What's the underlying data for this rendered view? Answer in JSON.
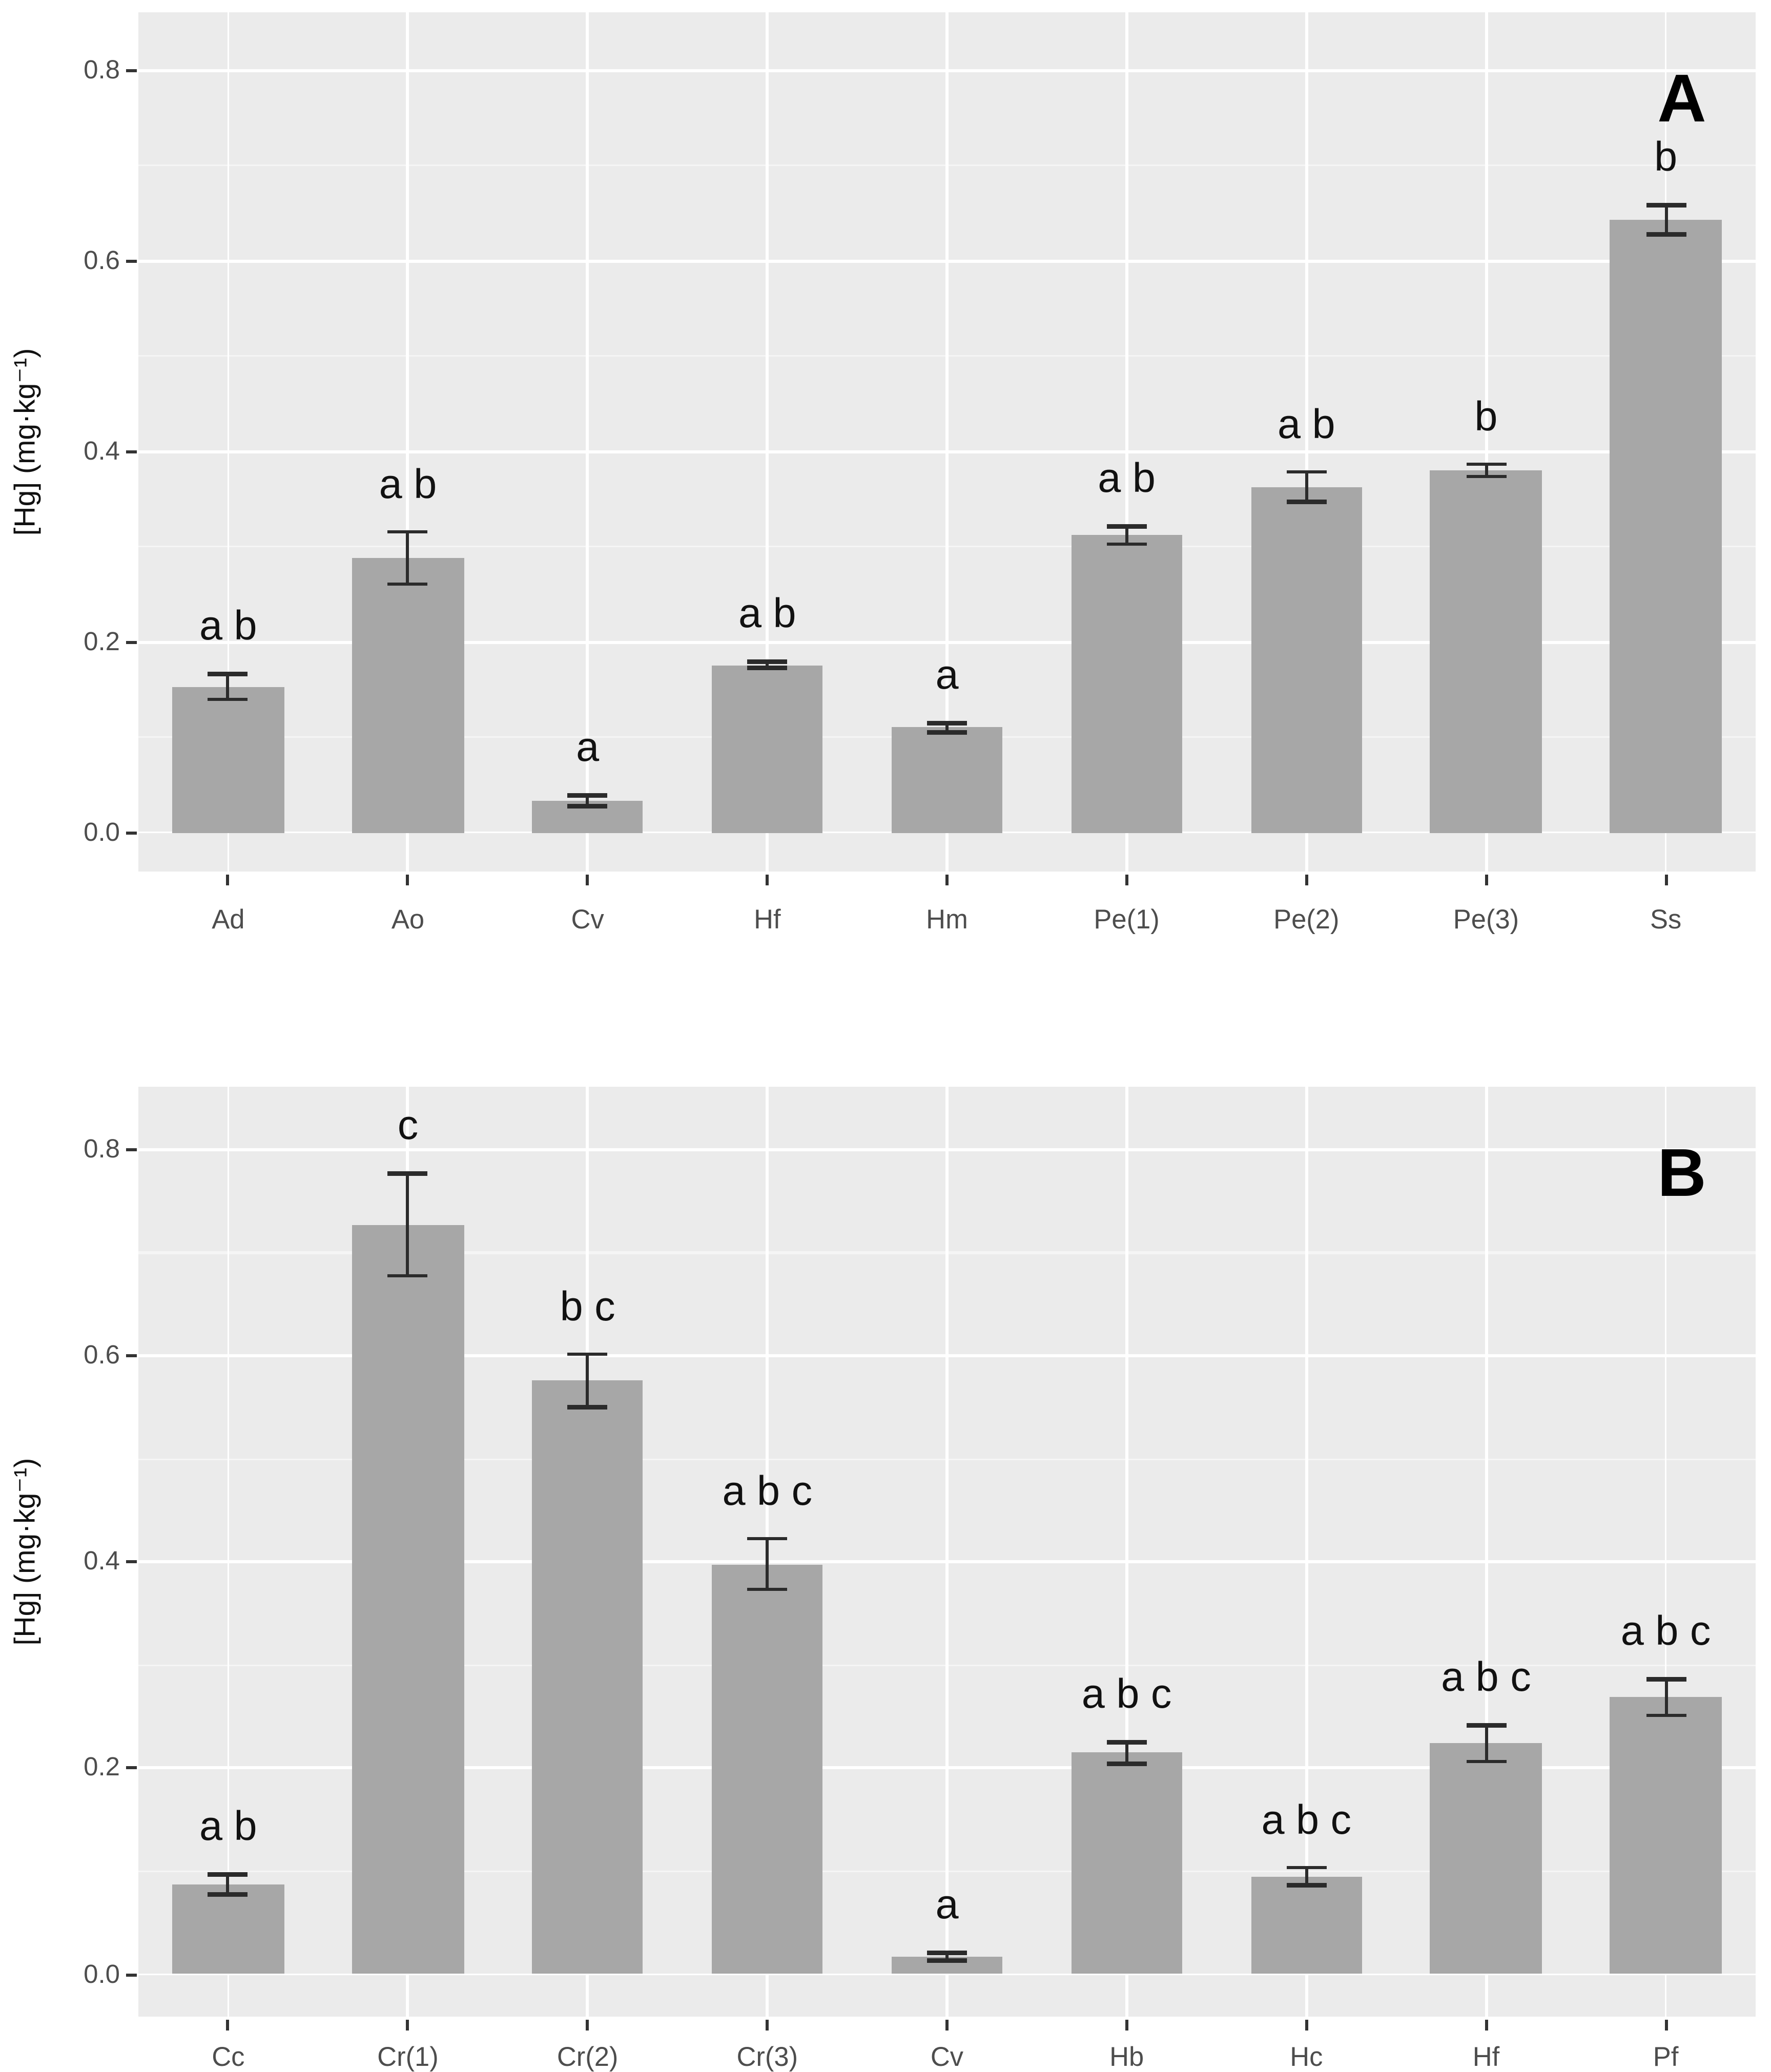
{
  "figure": {
    "y_axis_title": "[Hg] (mg·kg⁻¹)",
    "colors": {
      "panel_background": "#ebebeb",
      "bar_fill": "#a7a7a7",
      "grid_major": "#ffffff",
      "grid_minor": "#f5f5f5",
      "error_bar": "#2b2b2b",
      "tick_text": "#4d4d4d",
      "sig_letter_text": "#111111",
      "panel_letter_text": "#000000"
    }
  },
  "chart_data": [
    {
      "type": "bar",
      "panel_label": "A",
      "title": "",
      "xlabel": "",
      "ylabel": "[Hg] (mg·kg⁻¹)",
      "ylim": [
        0,
        0.8
      ],
      "ytick_values": [
        0.0,
        0.2,
        0.4,
        0.6,
        0.8
      ],
      "ytick_labels": [
        "0.0",
        "0.2",
        "0.4",
        "0.6",
        "0.8"
      ],
      "grid": "major every 0.2 (white), minor every 0.1, vertical line per category",
      "legend": "none",
      "categories": [
        "Ad",
        "Ao",
        "Cv",
        "Hf",
        "Hm",
        "Pe(1)",
        "Pe(2)",
        "Pe(3)",
        "Ss"
      ],
      "values": [
        0.153,
        0.288,
        0.033,
        0.176,
        0.11,
        0.312,
        0.363,
        0.38,
        0.643
      ],
      "errors": [
        0.014,
        0.028,
        0.006,
        0.004,
        0.005,
        0.01,
        0.016,
        0.007,
        0.016
      ],
      "sig_letters": [
        "a b",
        "a b",
        "a",
        "a b",
        "a",
        "a b",
        "a b",
        "b",
        "b"
      ]
    },
    {
      "type": "bar",
      "panel_label": "B",
      "title": "",
      "xlabel": "",
      "ylabel": "[Hg] (mg·kg⁻¹)",
      "ylim": [
        0,
        0.8
      ],
      "ytick_values": [
        0.0,
        0.2,
        0.4,
        0.6,
        0.8
      ],
      "ytick_labels": [
        "0.0",
        "0.2",
        "0.4",
        "0.6",
        "0.8"
      ],
      "grid": "major every 0.2 (white), minor every 0.1, vertical line per category",
      "legend": "none",
      "categories": [
        "Cc",
        "Cr(1)",
        "Cr(2)",
        "Cr(3)",
        "Cv",
        "Hb",
        "Hc",
        "Hf",
        "Pf"
      ],
      "values": [
        0.087,
        0.727,
        0.576,
        0.398,
        0.017,
        0.215,
        0.095,
        0.224,
        0.269
      ],
      "errors": [
        0.01,
        0.05,
        0.026,
        0.025,
        0.004,
        0.011,
        0.009,
        0.018,
        0.018
      ],
      "sig_letters": [
        "a b",
        "c",
        "b c",
        "a b c",
        "a",
        "a b c",
        "a b c",
        "a b c",
        "a b c"
      ]
    }
  ]
}
